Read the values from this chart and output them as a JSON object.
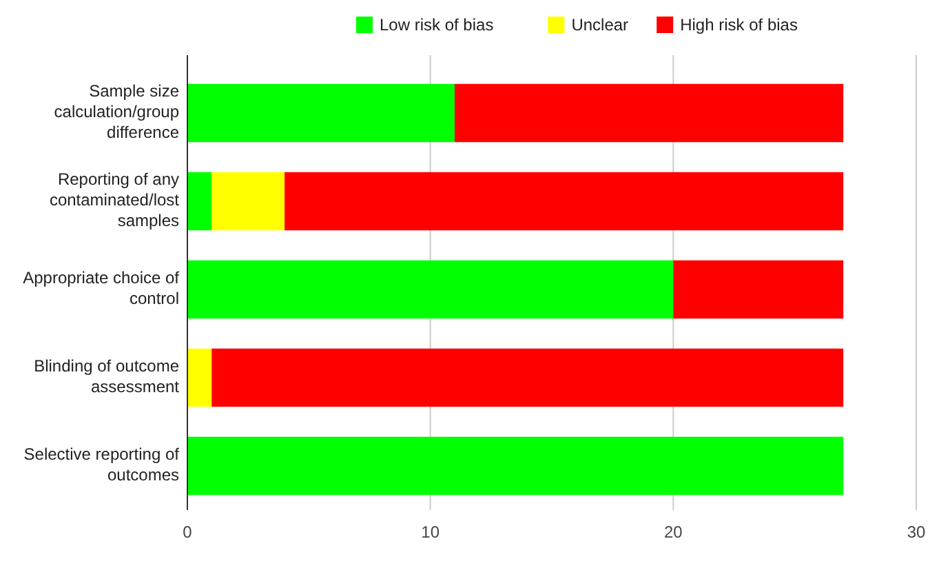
{
  "chart_data": {
    "type": "bar",
    "orientation": "horizontal",
    "stacked": true,
    "categories": [
      "Sample size calculation/group difference",
      "Reporting of any contaminated/lost samples",
      "Appropriate choice of control",
      "Blinding of outcome assessment",
      "Selective reporting of outcomes"
    ],
    "series": [
      {
        "name": "Low risk of bias",
        "color": "#00ff00",
        "values": [
          11,
          1,
          20,
          0,
          27
        ]
      },
      {
        "name": "Unclear",
        "color": "#ffff00",
        "values": [
          0,
          3,
          0,
          1,
          0
        ]
      },
      {
        "name": "High risk of bias",
        "color": "#ff0000",
        "values": [
          16,
          23,
          7,
          26,
          0
        ]
      }
    ],
    "xlim": [
      0,
      30
    ],
    "xticks": [
      0,
      10,
      20,
      30
    ],
    "grid": "x",
    "legend": "top"
  }
}
